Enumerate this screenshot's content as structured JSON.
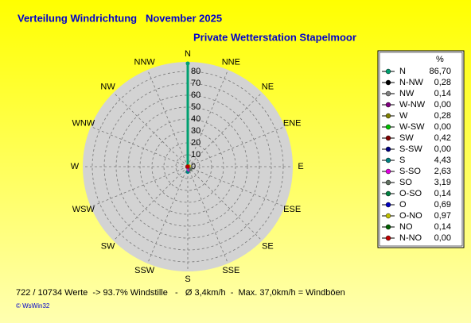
{
  "chart_data": {
    "type": "windrose",
    "title": "Verteilung Windrichtung   November 2025",
    "subtitle": "Private Wetterstation Stapelmoor",
    "directions": [
      "N",
      "NNE",
      "NE",
      "ENE",
      "E",
      "ESE",
      "SE",
      "SSE",
      "S",
      "SSW",
      "SW",
      "WSW",
      "W",
      "WNW",
      "NW",
      "NNW"
    ],
    "legend_header": "%",
    "categories": [
      "N",
      "N-NW",
      "NW",
      "W-NW",
      "W",
      "W-SW",
      "SW",
      "S-SW",
      "S",
      "S-SO",
      "SO",
      "O-SO",
      "O",
      "O-NO",
      "NO",
      "N-NO"
    ],
    "values": [
      86.7,
      0.28,
      0.14,
      0,
      0.28,
      0,
      0.42,
      0,
      4.43,
      2.63,
      3.19,
      0.14,
      0.69,
      0.97,
      0.14,
      0
    ],
    "value_labels": [
      "86,70",
      "0,28",
      "0,14",
      "0,00",
      "0,28",
      "0,00",
      "0,42",
      "0,00",
      "4,43",
      "2,63",
      "3,19",
      "0,14",
      "0,69",
      "0,97",
      "0,14",
      "0,00"
    ],
    "colors": [
      "#00a070",
      "#000000",
      "#808080",
      "#800080",
      "#808000",
      "#00c000",
      "#800000",
      "#000080",
      "#008080",
      "#e000e0",
      "#607060",
      "#008040",
      "#0000c0",
      "#c0c000",
      "#006000",
      "#c00000"
    ],
    "rlim": [
      0,
      88
    ],
    "rticks": [
      0,
      10,
      20,
      30,
      40,
      50,
      60,
      70,
      80
    ],
    "footer": "722 / 10734 Werte  -> 93.7% Windstille   -   Ø 3,4km/h  -  Max. 37,0km/h = Windböen",
    "copyright": "© WsWin32"
  }
}
